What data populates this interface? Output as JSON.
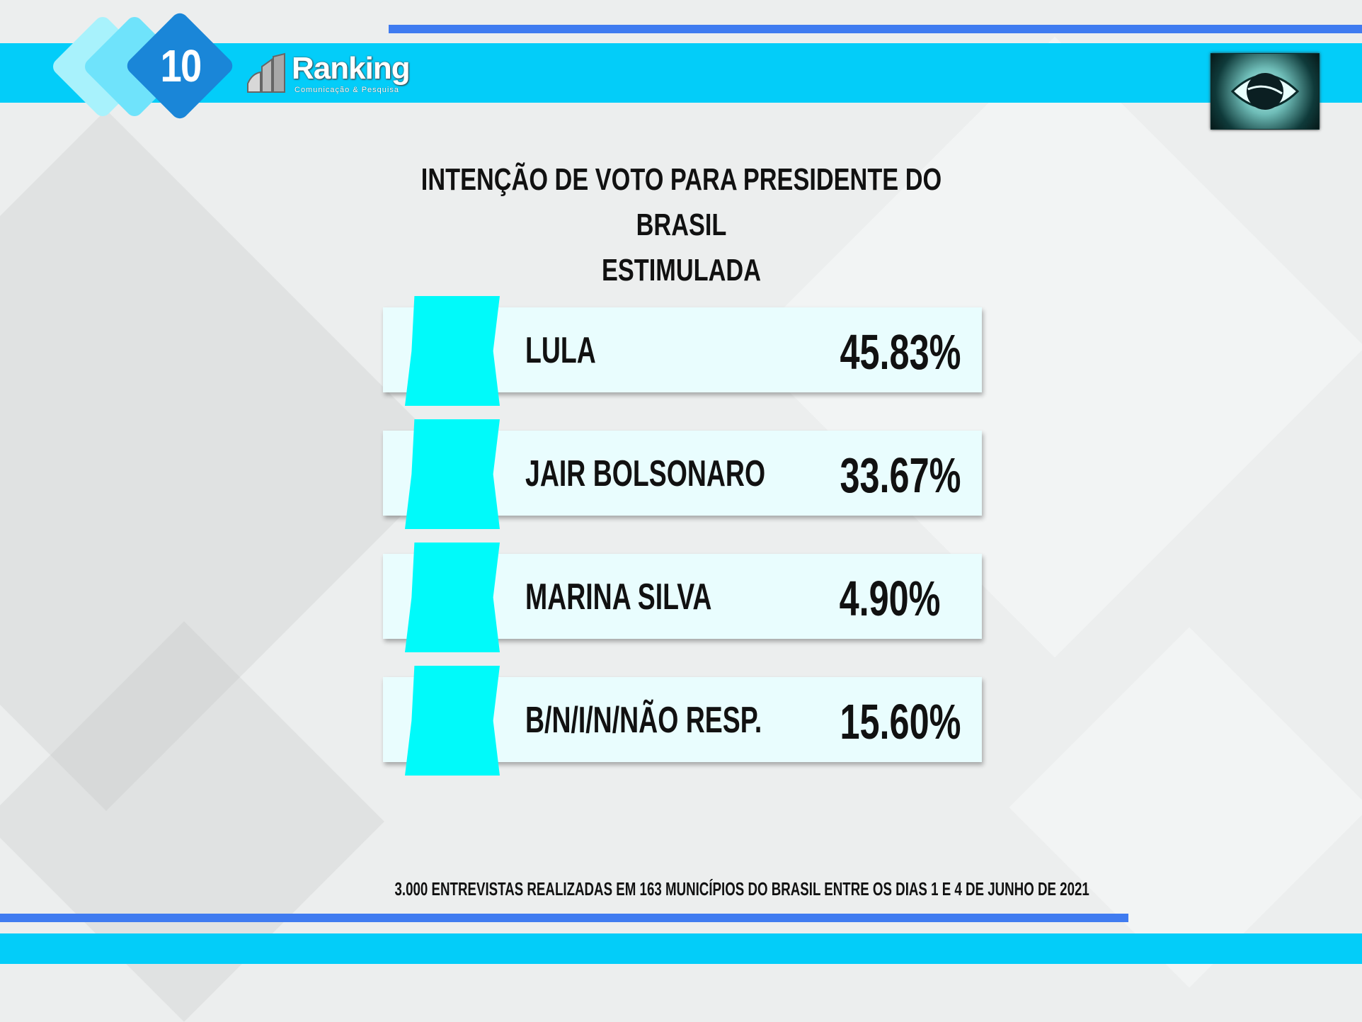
{
  "header": {
    "page_number": "10",
    "logo_text": "Ranking",
    "logo_subtitle": "Comunicação & Pesquisa",
    "colors": {
      "band": "#03cdf9",
      "line": "#3f7bf0",
      "accent": "#1a86d8",
      "tab": "#00fafa"
    }
  },
  "chart_data": {
    "type": "table",
    "title": "INTENÇÃO DE VOTO PARA PRESIDENTE DO BRASIL",
    "subtitle": "ESTIMULADA",
    "rows": [
      {
        "label": "LULA",
        "value": 45.83,
        "display": "45.83%"
      },
      {
        "label": "JAIR BOLSONARO",
        "value": 33.67,
        "display": "33.67%"
      },
      {
        "label": "MARINA SILVA",
        "value": 4.9,
        "display": "4.90%"
      },
      {
        "label": "B/N/I/N/NÃO RESP.",
        "value": 15.6,
        "display": "15.60%"
      }
    ]
  },
  "footnote": "3.000 ENTREVISTAS REALIZADAS EM 163 MUNICÍPIOS DO BRASIL ENTRE OS DIAS 1 E 4 DE JUNHO DE 2021",
  "icons": {
    "brand_mark": "ranking-logo-icon",
    "corner_image": "eye-globe-icon"
  }
}
